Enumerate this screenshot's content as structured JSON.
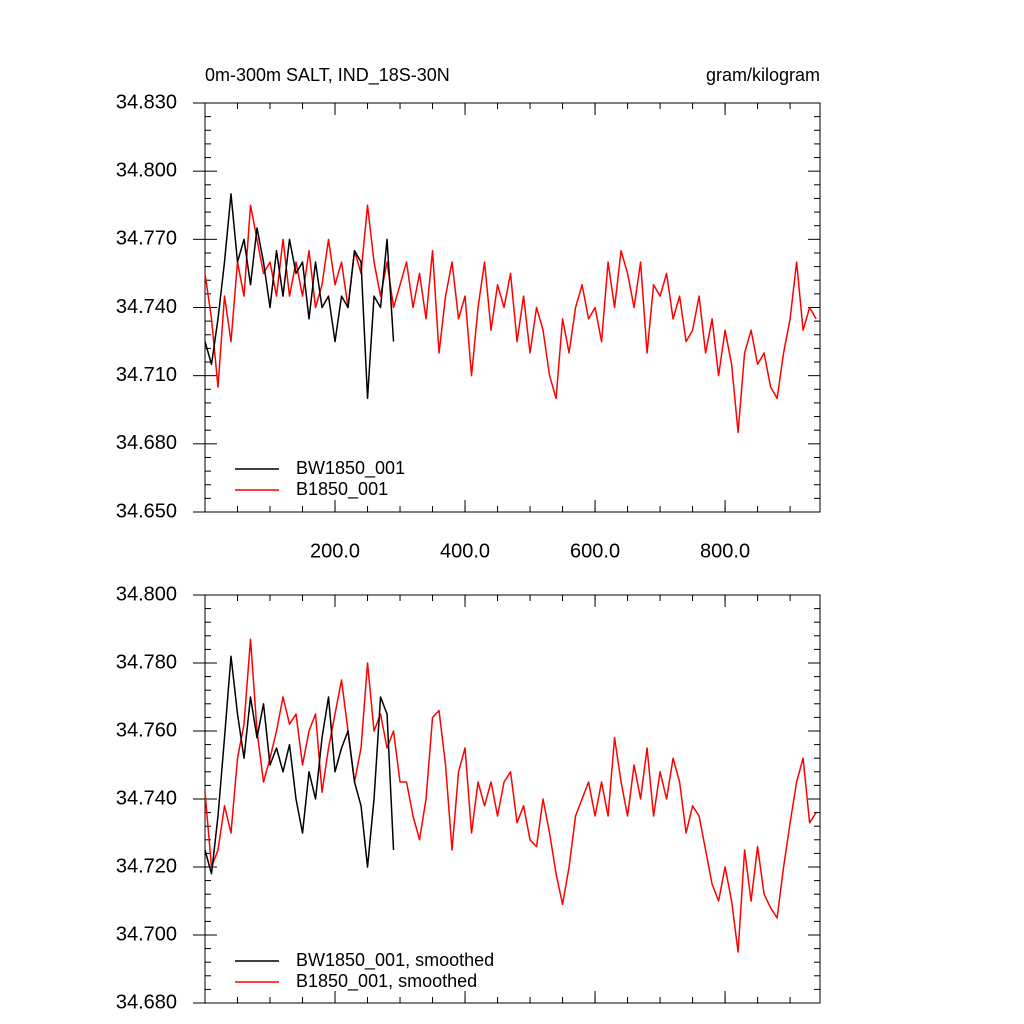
{
  "chart_data": [
    {
      "type": "line",
      "title": "0m-300m SALT, IND_18S-30N",
      "units": "gram/kilogram",
      "xlim": [
        0,
        946
      ],
      "xticks": [
        {
          "value": 200,
          "label": "200.0"
        },
        {
          "value": 400,
          "label": "400.0"
        },
        {
          "value": 600,
          "label": "600.0"
        },
        {
          "value": 800,
          "label": "800.0"
        }
      ],
      "ylim": [
        34.65,
        34.83
      ],
      "yticks": [
        {
          "value": 34.65,
          "label": "34.650"
        },
        {
          "value": 34.68,
          "label": "34.680"
        },
        {
          "value": 34.71,
          "label": "34.710"
        },
        {
          "value": 34.74,
          "label": "34.740"
        },
        {
          "value": 34.77,
          "label": "34.770"
        },
        {
          "value": 34.8,
          "label": "34.800"
        },
        {
          "value": 34.83,
          "label": "34.830"
        }
      ],
      "series": [
        {
          "name": "BW1850_001",
          "color": "#000000",
          "x": [
            0,
            10,
            20,
            30,
            40,
            50,
            60,
            70,
            80,
            90,
            100,
            110,
            120,
            130,
            140,
            150,
            160,
            170,
            180,
            190,
            200,
            210,
            220,
            230,
            240,
            250,
            260,
            270,
            280,
            290
          ],
          "values": [
            34.725,
            34.715,
            34.735,
            34.76,
            34.79,
            34.76,
            34.77,
            34.75,
            34.775,
            34.76,
            34.74,
            34.765,
            34.745,
            34.77,
            34.755,
            34.76,
            34.735,
            34.76,
            34.74,
            34.745,
            34.725,
            34.745,
            34.74,
            34.765,
            34.76,
            34.7,
            34.745,
            34.74,
            34.77,
            34.725
          ]
        },
        {
          "name": "B1850_001",
          "color": "#ff0000",
          "x": [
            0,
            10,
            20,
            30,
            40,
            50,
            60,
            70,
            80,
            90,
            100,
            110,
            120,
            130,
            140,
            150,
            160,
            170,
            180,
            190,
            200,
            210,
            220,
            230,
            240,
            250,
            260,
            270,
            280,
            290,
            300,
            310,
            320,
            330,
            340,
            350,
            360,
            370,
            380,
            390,
            400,
            410,
            420,
            430,
            440,
            450,
            460,
            470,
            480,
            490,
            500,
            510,
            520,
            530,
            540,
            550,
            560,
            570,
            580,
            590,
            600,
            610,
            620,
            630,
            640,
            650,
            660,
            670,
            680,
            690,
            700,
            710,
            720,
            730,
            740,
            750,
            760,
            770,
            780,
            790,
            800,
            810,
            820,
            830,
            840,
            850,
            860,
            870,
            880,
            890,
            900,
            910,
            920,
            930,
            940
          ],
          "values": [
            34.755,
            34.735,
            34.705,
            34.745,
            34.725,
            34.76,
            34.745,
            34.785,
            34.77,
            34.755,
            34.76,
            34.745,
            34.77,
            34.745,
            34.76,
            34.745,
            34.765,
            34.74,
            34.75,
            34.77,
            34.75,
            34.76,
            34.74,
            34.765,
            34.755,
            34.785,
            34.76,
            34.745,
            34.76,
            34.74,
            34.75,
            34.76,
            34.74,
            34.755,
            34.735,
            34.765,
            34.72,
            34.745,
            34.76,
            34.735,
            34.745,
            34.71,
            34.74,
            34.76,
            34.73,
            34.75,
            34.74,
            34.755,
            34.725,
            34.745,
            34.72,
            34.74,
            34.73,
            34.71,
            34.7,
            34.735,
            34.72,
            34.74,
            34.75,
            34.735,
            34.74,
            34.725,
            34.76,
            34.74,
            34.765,
            34.755,
            34.74,
            34.76,
            34.72,
            34.75,
            34.745,
            34.755,
            34.735,
            34.745,
            34.725,
            34.73,
            34.745,
            34.72,
            34.735,
            34.71,
            34.73,
            34.715,
            34.685,
            34.72,
            34.73,
            34.715,
            34.72,
            34.705,
            34.7,
            34.72,
            34.735,
            34.76,
            34.73,
            34.74,
            34.735
          ]
        }
      ]
    },
    {
      "type": "line",
      "xlim": [
        0,
        946
      ],
      "xticks": [
        200,
        400,
        600,
        800
      ],
      "ylim": [
        34.68,
        34.8
      ],
      "yticks": [
        {
          "value": 34.68,
          "label": "34.680"
        },
        {
          "value": 34.7,
          "label": "34.700"
        },
        {
          "value": 34.72,
          "label": "34.720"
        },
        {
          "value": 34.74,
          "label": "34.740"
        },
        {
          "value": 34.76,
          "label": "34.760"
        },
        {
          "value": 34.78,
          "label": "34.780"
        },
        {
          "value": 34.8,
          "label": "34.800"
        }
      ],
      "series": [
        {
          "name": "BW1850_001, smoothed",
          "color": "#000000",
          "x": [
            0,
            10,
            20,
            30,
            40,
            50,
            60,
            70,
            80,
            90,
            100,
            110,
            120,
            130,
            140,
            150,
            160,
            170,
            180,
            190,
            200,
            210,
            220,
            230,
            240,
            250,
            260,
            270,
            280,
            290
          ],
          "values": [
            34.725,
            34.718,
            34.735,
            34.758,
            34.782,
            34.765,
            34.752,
            34.77,
            34.758,
            34.768,
            34.75,
            34.755,
            34.748,
            34.756,
            34.74,
            34.73,
            34.748,
            34.74,
            34.758,
            34.77,
            34.748,
            34.755,
            34.76,
            34.745,
            34.738,
            34.72,
            34.74,
            34.77,
            34.765,
            34.725
          ]
        },
        {
          "name": "B1850_001, smoothed",
          "color": "#ff0000",
          "x": [
            0,
            10,
            20,
            30,
            40,
            50,
            60,
            70,
            80,
            90,
            100,
            110,
            120,
            130,
            140,
            150,
            160,
            170,
            180,
            190,
            200,
            210,
            220,
            230,
            240,
            250,
            260,
            270,
            280,
            290,
            300,
            310,
            320,
            330,
            340,
            350,
            360,
            370,
            380,
            390,
            400,
            410,
            420,
            430,
            440,
            450,
            460,
            470,
            480,
            490,
            500,
            510,
            520,
            530,
            540,
            550,
            560,
            570,
            580,
            590,
            600,
            610,
            620,
            630,
            640,
            650,
            660,
            670,
            680,
            690,
            700,
            710,
            720,
            730,
            740,
            750,
            760,
            770,
            780,
            790,
            800,
            810,
            820,
            830,
            840,
            850,
            860,
            870,
            880,
            890,
            900,
            910,
            920,
            930,
            940
          ],
          "values": [
            34.742,
            34.72,
            34.725,
            34.738,
            34.73,
            34.752,
            34.762,
            34.787,
            34.76,
            34.745,
            34.752,
            34.76,
            34.77,
            34.762,
            34.765,
            34.75,
            34.76,
            34.765,
            34.742,
            34.755,
            34.765,
            34.775,
            34.76,
            34.745,
            34.755,
            34.78,
            34.76,
            34.765,
            34.755,
            34.76,
            34.745,
            34.745,
            34.735,
            34.728,
            34.74,
            34.764,
            34.766,
            34.75,
            34.725,
            34.748,
            34.755,
            34.73,
            34.745,
            34.738,
            34.745,
            34.735,
            34.745,
            34.748,
            34.733,
            34.738,
            34.728,
            34.726,
            34.74,
            34.73,
            34.718,
            34.709,
            34.72,
            34.735,
            34.74,
            34.745,
            34.735,
            34.745,
            34.735,
            34.758,
            34.745,
            34.735,
            34.75,
            34.74,
            34.755,
            34.735,
            34.748,
            34.74,
            34.752,
            34.745,
            34.73,
            34.738,
            34.735,
            34.725,
            34.715,
            34.71,
            34.72,
            34.71,
            34.695,
            34.725,
            34.71,
            34.726,
            34.712,
            34.708,
            34.705,
            34.72,
            34.733,
            34.745,
            34.752,
            34.733,
            34.736
          ]
        }
      ]
    }
  ]
}
